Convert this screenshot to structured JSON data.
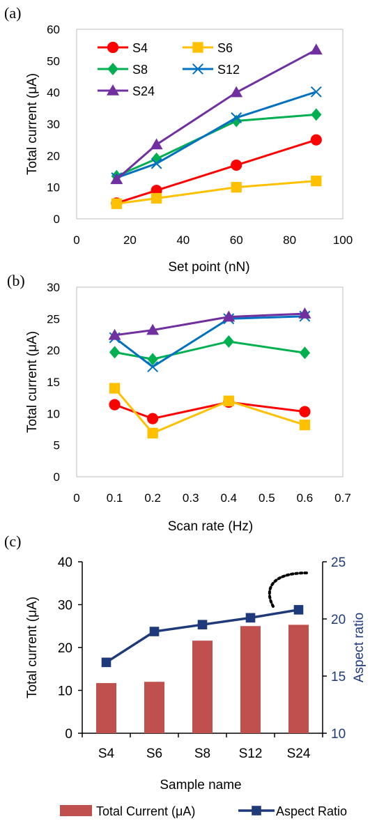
{
  "chart_data": [
    {
      "panel_label": "(a)",
      "type": "line",
      "xlabel": "Set point (nN)",
      "ylabel": "Total current (μA)",
      "xlim": [
        0,
        100
      ],
      "ylim": [
        0,
        60
      ],
      "xticks": [
        0,
        20,
        40,
        60,
        80,
        100
      ],
      "yticks": [
        0,
        10,
        20,
        30,
        40,
        50,
        60
      ],
      "x": [
        15,
        30,
        60,
        90
      ],
      "grid": false,
      "legend_placement": "top-left",
      "series": [
        {
          "name": "S4",
          "marker": "circle",
          "color": "#ff0000",
          "values": [
            5,
            9,
            17,
            25
          ]
        },
        {
          "name": "S6",
          "marker": "square",
          "color": "#ffc000",
          "values": [
            4.8,
            6.5,
            10,
            12
          ]
        },
        {
          "name": "S8",
          "marker": "diamond",
          "color": "#00b050",
          "values": [
            13.5,
            19,
            31,
            33
          ]
        },
        {
          "name": "S12",
          "marker": "x",
          "color": "#0070c0",
          "values": [
            13,
            17.5,
            32,
            40.2
          ]
        },
        {
          "name": "S24",
          "marker": "triangle",
          "color": "#7030a0",
          "values": [
            12.5,
            23.5,
            40,
            53.5
          ]
        }
      ]
    },
    {
      "panel_label": "(b)",
      "type": "line",
      "xlabel": "Scan rate (Hz)",
      "ylabel": "Total current (μA)",
      "xlim": [
        0,
        0.7
      ],
      "ylim": [
        0,
        30
      ],
      "xticks": [
        "0",
        "0.1",
        "0.2",
        "0.3",
        "0.4",
        "0.5",
        "0.6",
        "0.7"
      ],
      "yticks": [
        0,
        5,
        10,
        15,
        20,
        25,
        30
      ],
      "x": [
        0.1,
        0.2,
        0.4,
        0.6
      ],
      "grid": false,
      "series": [
        {
          "name": "S4",
          "marker": "circle",
          "color": "#ff0000",
          "values": [
            11.4,
            9.2,
            11.8,
            10.3
          ]
        },
        {
          "name": "S6",
          "marker": "square",
          "color": "#ffc000",
          "values": [
            14,
            6.9,
            12,
            8.2
          ]
        },
        {
          "name": "S8",
          "marker": "diamond",
          "color": "#00b050",
          "values": [
            19.7,
            18.6,
            21.4,
            19.6
          ]
        },
        {
          "name": "S12",
          "marker": "x",
          "color": "#0070c0",
          "values": [
            22,
            17.4,
            25,
            25.4
          ]
        },
        {
          "name": "S24",
          "marker": "triangle",
          "color": "#7030a0",
          "values": [
            22.4,
            23.2,
            25.3,
            25.8
          ]
        }
      ]
    },
    {
      "panel_label": "(c)",
      "type": "bar",
      "xlabel": "Sample name",
      "ylabel": "Total current (μA)",
      "y2label": "Aspect ratio",
      "categories": [
        "S4",
        "S6",
        "S8",
        "S12",
        "S24"
      ],
      "ylim": [
        0,
        40
      ],
      "yticks": [
        0,
        10,
        20,
        30,
        40
      ],
      "y2lim": [
        10,
        25
      ],
      "y2ticks": [
        10,
        15,
        20,
        25
      ],
      "legend_placement": "bottom",
      "series": [
        {
          "name": "Total Current (μA)",
          "kind": "bar",
          "axis": "left",
          "color": "#c0504d",
          "values": [
            11.7,
            12,
            21.6,
            25,
            25.3
          ]
        },
        {
          "name": "Aspect Ratio",
          "kind": "line",
          "axis": "right",
          "color": "#1f3a7a",
          "values": [
            16.2,
            18.9,
            19.5,
            20.1,
            20.8
          ]
        }
      ]
    }
  ]
}
